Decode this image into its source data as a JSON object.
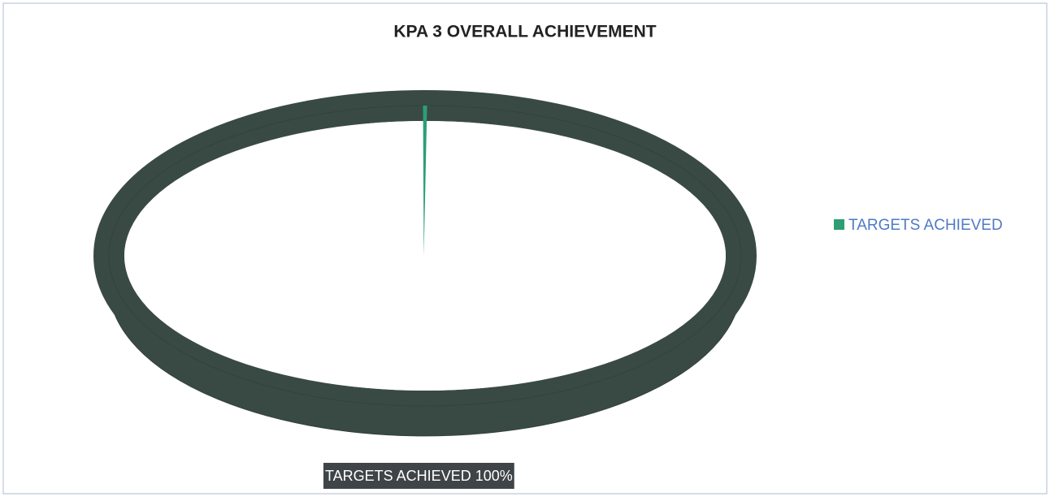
{
  "chart_data": {
    "type": "pie",
    "title": "KPA 3 OVERALL ACHIEVEMENT",
    "categories": [
      "TARGETS ACHIEVED"
    ],
    "values": [
      100
    ],
    "value_labels": [
      "100%"
    ],
    "colors": [
      "#2e9e75"
    ],
    "legend": "right"
  }
}
